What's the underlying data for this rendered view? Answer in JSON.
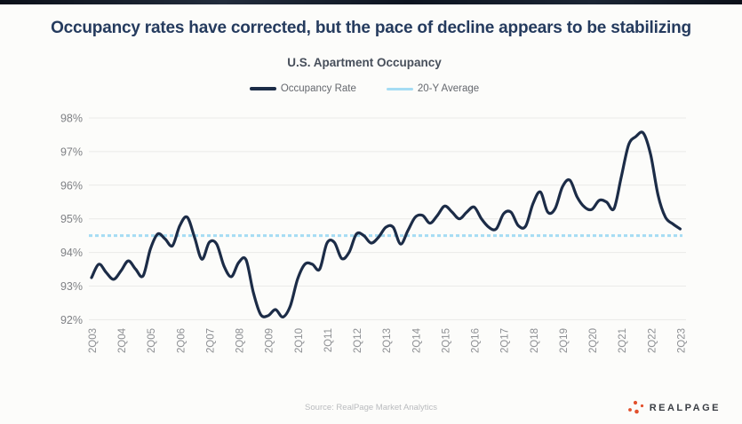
{
  "page": {
    "title": "Occupancy rates have corrected, but the pace of decline appears to be stabilizing",
    "source": "Source: RealPage Market Analytics",
    "logo_text": "REALPAGE"
  },
  "colors": {
    "title": "#253b5e",
    "occupancy_line": "#1c2c47",
    "average_line": "#a5dcf3",
    "grid": "#eaeae8",
    "y_axis_label": "#7f8185",
    "x_axis_label": "#8d8f93",
    "legend_text": "#65686e",
    "subtitle": "#474f5b",
    "source_text": "#b9bbbe",
    "logo_orange": "#e2512e"
  },
  "chart_data": {
    "type": "line",
    "title": "U.S. Apartment Occupancy",
    "legend": [
      {
        "label": "Occupancy Rate"
      },
      {
        "label": "20-Y Average"
      }
    ],
    "legend_position": "top",
    "grid": "horizontal",
    "ylim": [
      92,
      98
    ],
    "y_tick_labels": [
      "98%",
      "97%",
      "96%",
      "95%",
      "94%",
      "93%",
      "92%"
    ],
    "x_tick_labels": [
      "2Q03",
      "2Q04",
      "2Q05",
      "2Q06",
      "2Q07",
      "2Q08",
      "2Q09",
      "2Q10",
      "2Q11",
      "2Q12",
      "2Q13",
      "2Q14",
      "2Q15",
      "2Q16",
      "2Q17",
      "2Q18",
      "2Q19",
      "2Q20",
      "2Q21",
      "2Q22",
      "2Q23"
    ],
    "frequency": "quarterly",
    "first_point": "2Q03",
    "last_point": "2Q23",
    "series": [
      {
        "name": "Occupancy Rate",
        "values": [
          93.25,
          93.65,
          93.4,
          93.2,
          93.45,
          93.75,
          93.5,
          93.3,
          94.1,
          94.55,
          94.4,
          94.2,
          94.8,
          95.05,
          94.45,
          93.8,
          94.3,
          94.25,
          93.6,
          93.28,
          93.7,
          93.78,
          92.8,
          92.15,
          92.12,
          92.3,
          92.08,
          92.4,
          93.2,
          93.65,
          93.65,
          93.5,
          94.28,
          94.3,
          93.82,
          94.0,
          94.55,
          94.5,
          94.28,
          94.45,
          94.75,
          94.75,
          94.25,
          94.65,
          95.05,
          95.1,
          94.87,
          95.1,
          95.38,
          95.2,
          95.0,
          95.2,
          95.35,
          95.0,
          94.75,
          94.7,
          95.15,
          95.2,
          94.8,
          94.78,
          95.45,
          95.8,
          95.2,
          95.3,
          95.95,
          96.15,
          95.65,
          95.35,
          95.28,
          95.55,
          95.5,
          95.3,
          96.25,
          97.2,
          97.45,
          97.55,
          96.9,
          95.7,
          95.05,
          94.85,
          94.7
        ]
      },
      {
        "name": "20-Y Average",
        "constant_value": 94.5
      }
    ]
  }
}
